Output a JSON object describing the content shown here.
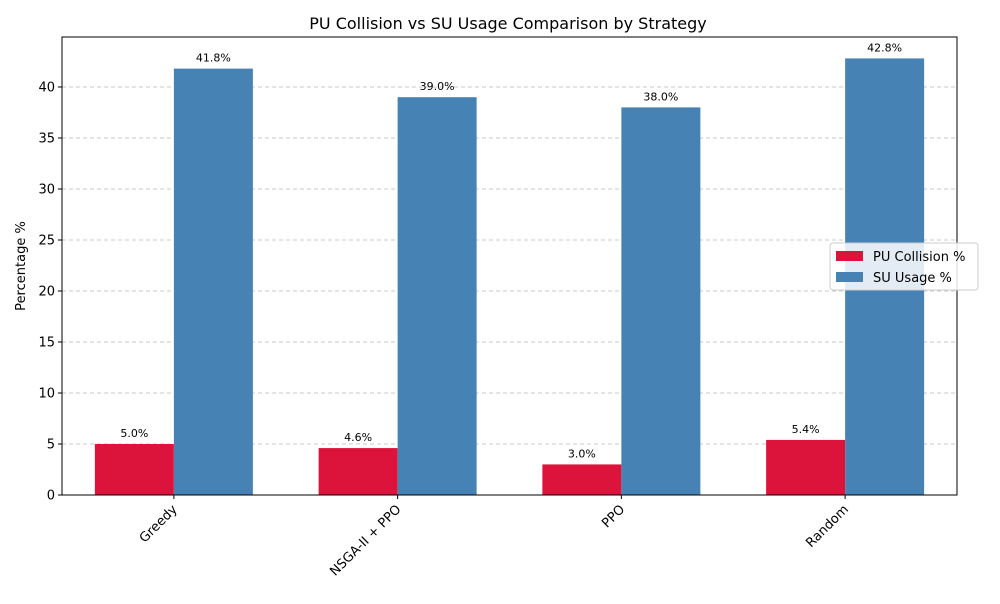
{
  "chart_data": {
    "type": "bar",
    "title": "PU Collision vs SU Usage Comparison by Strategy",
    "xlabel": "",
    "ylabel": "Percentage %",
    "categories": [
      "Greedy",
      "NSGA-II + PPO",
      "PPO",
      "Random"
    ],
    "series": [
      {
        "name": "PU Collision %",
        "values": [
          5.0,
          4.6,
          3.0,
          5.4
        ],
        "color": "#dc143c"
      },
      {
        "name": "SU Usage %",
        "values": [
          41.8,
          39.0,
          38.0,
          42.8
        ],
        "color": "#4682b4"
      }
    ],
    "data_labels": [
      [
        "5.0%",
        "4.6%",
        "3.0%",
        "5.4%"
      ],
      [
        "41.8%",
        "39.0%",
        "38.0%",
        "42.8%"
      ]
    ],
    "ylim": [
      0,
      44.9
    ],
    "yticks": [
      0,
      5,
      10,
      15,
      20,
      25,
      30,
      35,
      40
    ],
    "grid": "y-dashed",
    "legend_position": "center-right",
    "xtick_rotation": 45
  }
}
